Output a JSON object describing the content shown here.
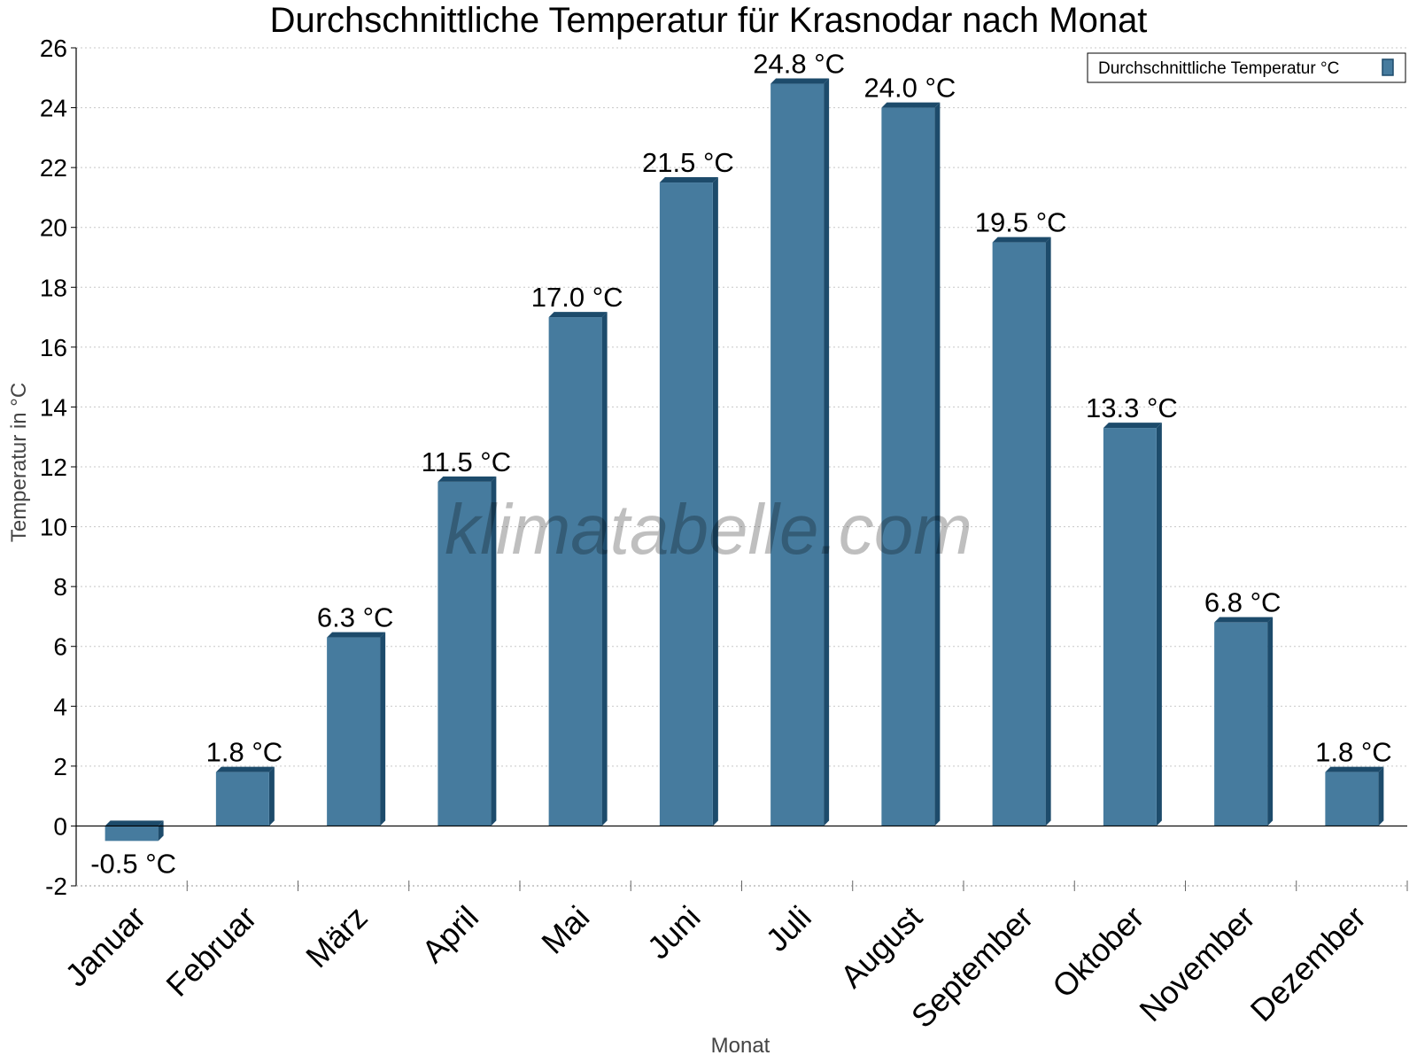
{
  "chart_data": {
    "type": "bar",
    "title": "Durchschnittliche Temperatur für Krasnodar nach Monat",
    "xlabel": "Monat",
    "ylabel": "Temperatur in °C",
    "ylim": [
      -2,
      26
    ],
    "yticks": [
      -2,
      0,
      2,
      4,
      6,
      8,
      10,
      12,
      14,
      16,
      18,
      20,
      22,
      24,
      26
    ],
    "grid": true,
    "legend_position": "top-right",
    "categories": [
      "Januar",
      "Februar",
      "März",
      "April",
      "Mai",
      "Juni",
      "Juli",
      "August",
      "September",
      "Oktober",
      "November",
      "Dezember"
    ],
    "series": [
      {
        "name": "Durchschnittliche Temperatur °C",
        "values": [
          -0.5,
          1.8,
          6.3,
          11.5,
          17.0,
          21.5,
          24.8,
          24.0,
          19.5,
          13.3,
          6.8,
          1.8
        ],
        "labels": [
          "-0.5 °C",
          "1.8 °C",
          "6.3 °C",
          "11.5 °C",
          "17.0 °C",
          "21.5 °C",
          "24.8 °C",
          "24.0 °C",
          "19.5 °C",
          "13.3 °C",
          "6.8 °C",
          "1.8 °C"
        ]
      }
    ],
    "colors": {
      "bar_front": "#467b9e",
      "bar_side": "#1d4b6b",
      "bar_top": "#1d4b6b",
      "grid": "#c8c8c8",
      "axis": "#000000",
      "axis_label": "#444444"
    }
  },
  "watermark": "klimatabelle.com"
}
